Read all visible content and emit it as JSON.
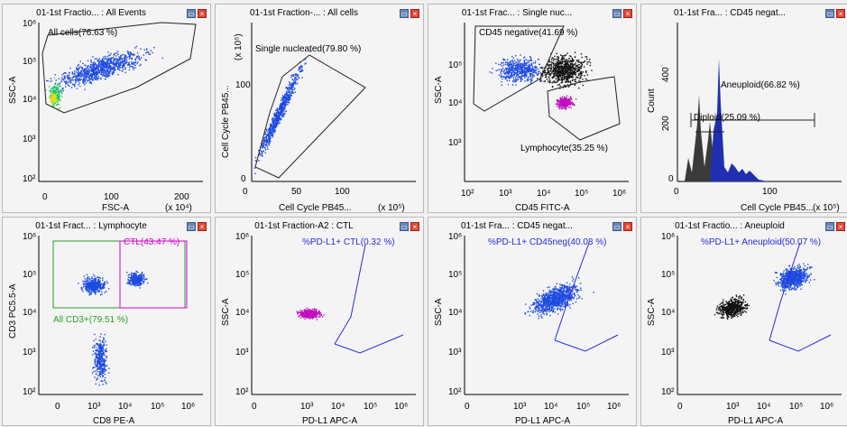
{
  "colors": {
    "gate": "#1f1f1f",
    "gate_magenta": "#d800d8",
    "gate_green": "#2a9d2a",
    "gate_blue": "#2929e0",
    "axis": "#000000"
  },
  "panels": [
    {
      "title": "01-1st Fractio... : All Events",
      "xlabel": "FSC-A",
      "ylabel": "SSC-A",
      "xunit": "(x 10⁴)",
      "yunit": "",
      "xticks": [
        "0",
        "100",
        "200"
      ],
      "yticks": [
        "10²",
        "10³",
        "10⁴",
        "10⁵",
        "10⁶"
      ],
      "gates": [
        "All cells(76.63 %)"
      ]
    },
    {
      "title": "01-1st Fraction-... : All cells",
      "xlabel": "Cell Cycle PB45...",
      "ylabel": "Cell Cycle PB45...",
      "xunit": "(x 10⁵)",
      "yunit": "(x 10⁵)",
      "xticks": [
        "0",
        "50",
        "100"
      ],
      "yticks": [
        "0",
        "100"
      ],
      "gates": [
        "Single nucleated(79.80 %)"
      ]
    },
    {
      "title": "01-1st Frac... : Single nuc...",
      "xlabel": "CD45 FITC-A",
      "ylabel": "SSC-A",
      "xunit": "",
      "yunit": "",
      "xticks": [
        "10²",
        "10³",
        "10⁴",
        "10⁵",
        "10⁶"
      ],
      "yticks": [
        "10³",
        "10⁴",
        "10⁵"
      ],
      "gates": [
        "CD45 negative(41.69 %)",
        "Lymphocyte(35.25 %)"
      ]
    },
    {
      "title": "01-1st Fra... : CD45 negat...",
      "xlabel": "Cell Cycle PB45...",
      "ylabel": "Count",
      "xunit": "(x 10⁵)",
      "yunit": "",
      "xticks": [
        "0",
        "100"
      ],
      "yticks": [
        "0",
        "200",
        "400"
      ],
      "gates": [
        "Aneuploid(66.82 %)",
        "Diploid(25.09 %)"
      ]
    },
    {
      "title": "01-1st Fract... : Lymphocyte",
      "xlabel": "CD8 PE-A",
      "ylabel": "CD3 PC5.5-A",
      "xunit": "",
      "yunit": "",
      "xticks": [
        "0",
        "10³",
        "10⁴",
        "10⁵",
        "10⁶"
      ],
      "yticks": [
        "10²",
        "10³",
        "10⁴",
        "10⁵",
        "10⁶"
      ],
      "gates": [
        "CTL(43.47 %)",
        "All CD3+(79.51 %)"
      ]
    },
    {
      "title": "01-1st Fraction-A2 : CTL",
      "xlabel": "PD-L1 APC-A",
      "ylabel": "SSC-A",
      "xunit": "",
      "yunit": "",
      "xticks": [
        "0",
        "10³",
        "10⁴",
        "10⁵",
        "10⁶"
      ],
      "yticks": [
        "10²",
        "10³",
        "10⁴",
        "10⁵",
        "10⁶"
      ],
      "gates": [
        "%PD-L1+ CTL(0.32 %)"
      ]
    },
    {
      "title": "01-1st Fra... : CD45 negat...",
      "xlabel": "PD-L1 APC-A",
      "ylabel": "SSC-A",
      "xunit": "",
      "yunit": "",
      "xticks": [
        "0",
        "10³",
        "10⁴",
        "10⁵",
        "10⁶"
      ],
      "yticks": [
        "10²",
        "10³",
        "10⁴",
        "10⁵",
        "10⁶"
      ],
      "gates": [
        "%PD-L1+ CD45neg(40.08 %)"
      ]
    },
    {
      "title": "01-1st Fractio... : Aneuploid",
      "xlabel": "PD-L1 APC-A",
      "ylabel": "SSC-A",
      "xunit": "",
      "yunit": "",
      "xticks": [
        "0",
        "10³",
        "10⁴",
        "10⁵",
        "10⁶"
      ],
      "yticks": [
        "10²",
        "10³",
        "10⁴",
        "10⁵",
        "10⁶"
      ],
      "gates": [
        "%PD-L1+ Aneuploid(50.07 %)"
      ]
    }
  ]
}
